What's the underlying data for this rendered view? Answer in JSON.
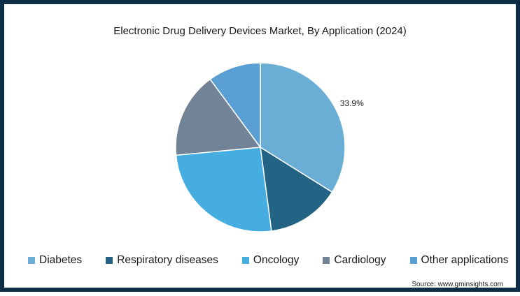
{
  "chart_data": {
    "type": "pie",
    "title": "Electronic Drug Delivery Devices Market, By Application (2024)",
    "slices": [
      {
        "name": "Diabetes",
        "value": 33.9,
        "color": "#6aaed6",
        "label": "33.9%"
      },
      {
        "name": "Respiratory diseases",
        "value": 14.0,
        "color": "#236383",
        "label": ""
      },
      {
        "name": "Oncology",
        "value": 25.6,
        "color": "#45ade0",
        "label": ""
      },
      {
        "name": "Cardiology",
        "value": 16.4,
        "color": "#718395",
        "label": ""
      },
      {
        "name": "Other applications",
        "value": 10.1,
        "color": "#5a9fd4",
        "label": ""
      }
    ],
    "legend_position": "bottom"
  },
  "source": "Source: www.gminsights.com"
}
